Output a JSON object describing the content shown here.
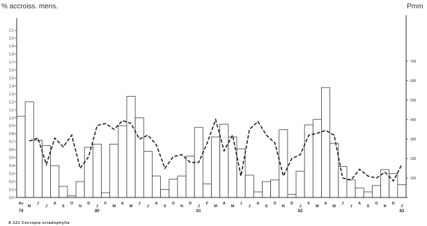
{
  "chart_data": {
    "type": "bar",
    "title": "",
    "y_left_label": "% accroiss. mens.",
    "y_right_label": "Pmm",
    "caption": "A 121 Cecropia sciadophylla",
    "ylim_left": [
      0,
      2.2
    ],
    "ylim_right": [
      0,
      900
    ],
    "yticks_left": [
      "0,0",
      "0,1",
      "0,2",
      "0,3",
      "0,4",
      "0,5",
      "0,6",
      "0,7",
      "0,8",
      "0,9",
      "1,0",
      "1,1",
      "1,2",
      "1,3",
      "1,4",
      "1,5",
      "1,6",
      "1,7",
      "1,8",
      "1,9",
      "2,0",
      "2,1"
    ],
    "yticks_right": [
      "100",
      "200",
      "300",
      "400",
      "500",
      "600",
      "700"
    ],
    "months": [
      "Av",
      "M",
      "J",
      "J",
      "A",
      "S",
      "O",
      "N",
      "D",
      "J",
      "F",
      "M",
      "A",
      "M",
      "J",
      "J",
      "A",
      "S",
      "O",
      "N",
      "D",
      "J",
      "F",
      "M",
      "A",
      "M",
      "J",
      "J",
      "A",
      "S",
      "O",
      "N",
      "D",
      "J",
      "F",
      "M",
      "A",
      "M",
      "J",
      "J",
      "A",
      "S",
      "O",
      "N",
      "D",
      "J"
    ],
    "year_labels": [
      {
        "label": "79",
        "index": 0
      },
      {
        "label": "80",
        "index": 9
      },
      {
        "label": "81",
        "index": 21
      },
      {
        "label": "82",
        "index": 33
      },
      {
        "label": "83",
        "index": 45
      }
    ],
    "series": [
      {
        "type": "bar",
        "axis": "left",
        "values": [
          1.02,
          1.2,
          0.72,
          0.65,
          0.4,
          0.14,
          0.02,
          0.2,
          0.63,
          0.67,
          0.06,
          0.67,
          0.9,
          1.27,
          1.0,
          0.58,
          0.27,
          0.1,
          0.23,
          0.27,
          0.52,
          0.88,
          0.17,
          0.76,
          0.92,
          0.76,
          0.61,
          0.28,
          0.07,
          0.2,
          0.22,
          0.85,
          0.04,
          0.33,
          0.91,
          0.98,
          1.38,
          0.68,
          0.39,
          0.22,
          0.12,
          0.07,
          0.15,
          0.35,
          0.3,
          0.16
        ]
      },
      {
        "type": "line",
        "axis": "right",
        "style": "dashed",
        "values": [
          null,
          290,
          305,
          170,
          305,
          260,
          320,
          150,
          210,
          370,
          380,
          350,
          395,
          380,
          300,
          320,
          270,
          150,
          210,
          220,
          180,
          180,
          280,
          400,
          240,
          320,
          110,
          350,
          390,
          320,
          280,
          110,
          200,
          220,
          320,
          330,
          345,
          320,
          100,
          90,
          145,
          110,
          100,
          130,
          85,
          170
        ]
      }
    ]
  }
}
